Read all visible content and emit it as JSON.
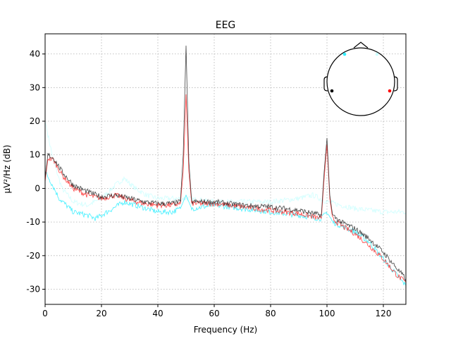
{
  "chart_data": {
    "type": "line",
    "title": "EEG",
    "xlabel": "Frequency (Hz)",
    "ylabel": "µV²/Hz (dB)",
    "xlim": [
      0,
      128
    ],
    "ylim": [
      -34.5,
      46
    ],
    "xticks": [
      0,
      20,
      40,
      60,
      80,
      100,
      120
    ],
    "yticks": [
      -30,
      -20,
      -10,
      0,
      10,
      20,
      30,
      40
    ],
    "grid": true,
    "grid_style": "dotted",
    "legend": "none",
    "series": [
      {
        "color": "#ccffff",
        "opacity": 0.9,
        "points": [
          [
            0,
            20
          ],
          [
            1,
            16
          ],
          [
            3,
            8
          ],
          [
            6,
            0
          ],
          [
            10,
            -4
          ],
          [
            15,
            -5
          ],
          [
            20,
            -3
          ],
          [
            25,
            1
          ],
          [
            28,
            3
          ],
          [
            32,
            0
          ],
          [
            36,
            -2
          ],
          [
            40,
            -3
          ],
          [
            50,
            -3
          ],
          [
            60,
            -4
          ],
          [
            70,
            -4
          ],
          [
            80,
            -4
          ],
          [
            90,
            -3
          ],
          [
            95,
            -2
          ],
          [
            100,
            -4
          ],
          [
            105,
            -5
          ],
          [
            110,
            -6
          ],
          [
            120,
            -7
          ],
          [
            128,
            -7
          ]
        ]
      },
      {
        "color": "#33eeff",
        "opacity": 0.9,
        "points": [
          [
            0,
            5
          ],
          [
            2,
            2
          ],
          [
            5,
            -3
          ],
          [
            10,
            -7
          ],
          [
            15,
            -8
          ],
          [
            18,
            -9
          ],
          [
            22,
            -7
          ],
          [
            28,
            -4
          ],
          [
            32,
            -5
          ],
          [
            36,
            -6
          ],
          [
            40,
            -7
          ],
          [
            45,
            -7
          ],
          [
            48,
            -6
          ],
          [
            49,
            -4
          ],
          [
            50,
            -2
          ],
          [
            51,
            -4
          ],
          [
            52,
            -6
          ],
          [
            60,
            -5
          ],
          [
            70,
            -6
          ],
          [
            80,
            -7
          ],
          [
            90,
            -8
          ],
          [
            98,
            -9
          ],
          [
            100,
            -7
          ],
          [
            102,
            -10
          ],
          [
            110,
            -13
          ],
          [
            115,
            -16
          ],
          [
            120,
            -21
          ],
          [
            125,
            -26
          ],
          [
            128,
            -29
          ]
        ]
      },
      {
        "color": "#ff2020",
        "opacity": 0.85,
        "points": [
          [
            0,
            2
          ],
          [
            1,
            9
          ],
          [
            3,
            8.5
          ],
          [
            6,
            4
          ],
          [
            10,
            0
          ],
          [
            15,
            -2
          ],
          [
            20,
            -3
          ],
          [
            25,
            -2
          ],
          [
            30,
            -3.5
          ],
          [
            35,
            -4.5
          ],
          [
            40,
            -5
          ],
          [
            45,
            -5
          ],
          [
            48,
            -4.5
          ],
          [
            49,
            5
          ],
          [
            50,
            28
          ],
          [
            51,
            5
          ],
          [
            52,
            -4.5
          ],
          [
            60,
            -4.5
          ],
          [
            70,
            -5.5
          ],
          [
            80,
            -6.5
          ],
          [
            90,
            -7.5
          ],
          [
            98,
            -9
          ],
          [
            99,
            3
          ],
          [
            100,
            13
          ],
          [
            101,
            -3
          ],
          [
            102,
            -9
          ],
          [
            105,
            -11
          ],
          [
            110,
            -13.5
          ],
          [
            115,
            -17
          ],
          [
            120,
            -21
          ],
          [
            125,
            -26
          ],
          [
            128,
            -28
          ]
        ]
      },
      {
        "color": "#222222",
        "opacity": 0.85,
        "points": [
          [
            0,
            3
          ],
          [
            1,
            10
          ],
          [
            3,
            9
          ],
          [
            6,
            5
          ],
          [
            10,
            1
          ],
          [
            15,
            -1
          ],
          [
            20,
            -2.5
          ],
          [
            25,
            -2
          ],
          [
            30,
            -3
          ],
          [
            35,
            -4
          ],
          [
            40,
            -4.5
          ],
          [
            45,
            -4.5
          ],
          [
            48,
            -4
          ],
          [
            49,
            10
          ],
          [
            50,
            42.5
          ],
          [
            51,
            8
          ],
          [
            52,
            -4
          ],
          [
            60,
            -4
          ],
          [
            70,
            -5
          ],
          [
            80,
            -5.5
          ],
          [
            90,
            -6.5
          ],
          [
            98,
            -8
          ],
          [
            99,
            5
          ],
          [
            100,
            15
          ],
          [
            101,
            -2
          ],
          [
            102,
            -8
          ],
          [
            105,
            -10
          ],
          [
            110,
            -12
          ],
          [
            115,
            -15
          ],
          [
            120,
            -19
          ],
          [
            125,
            -24
          ],
          [
            128,
            -27
          ]
        ]
      }
    ],
    "sensor_inset": {
      "sensors": [
        {
          "color": "#33eeff",
          "position": "front-left"
        },
        {
          "color": "#ccffff",
          "position": "front-right"
        },
        {
          "color": "#000000",
          "position": "left"
        },
        {
          "color": "#ff0000",
          "position": "right"
        }
      ]
    }
  }
}
